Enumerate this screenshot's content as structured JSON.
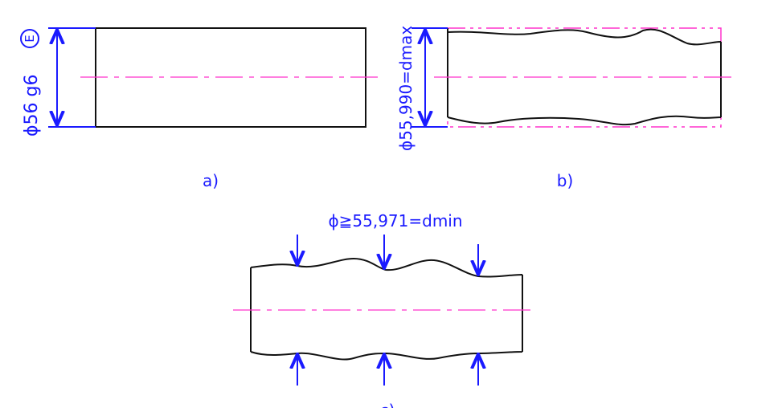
{
  "figure_a": {
    "label": "a)",
    "dimension_text": "ϕ56 g6",
    "envelope_symbol": "E"
  },
  "figure_b": {
    "label": "b)",
    "dimension_text": "ϕ55,990=dmax"
  },
  "figure_c": {
    "label": "c)",
    "dimension_text": "ϕ≧55,971=dmin"
  },
  "colors": {
    "dimension": "#1a1aff",
    "centerline": "#ff33cc",
    "outline": "#111111"
  }
}
